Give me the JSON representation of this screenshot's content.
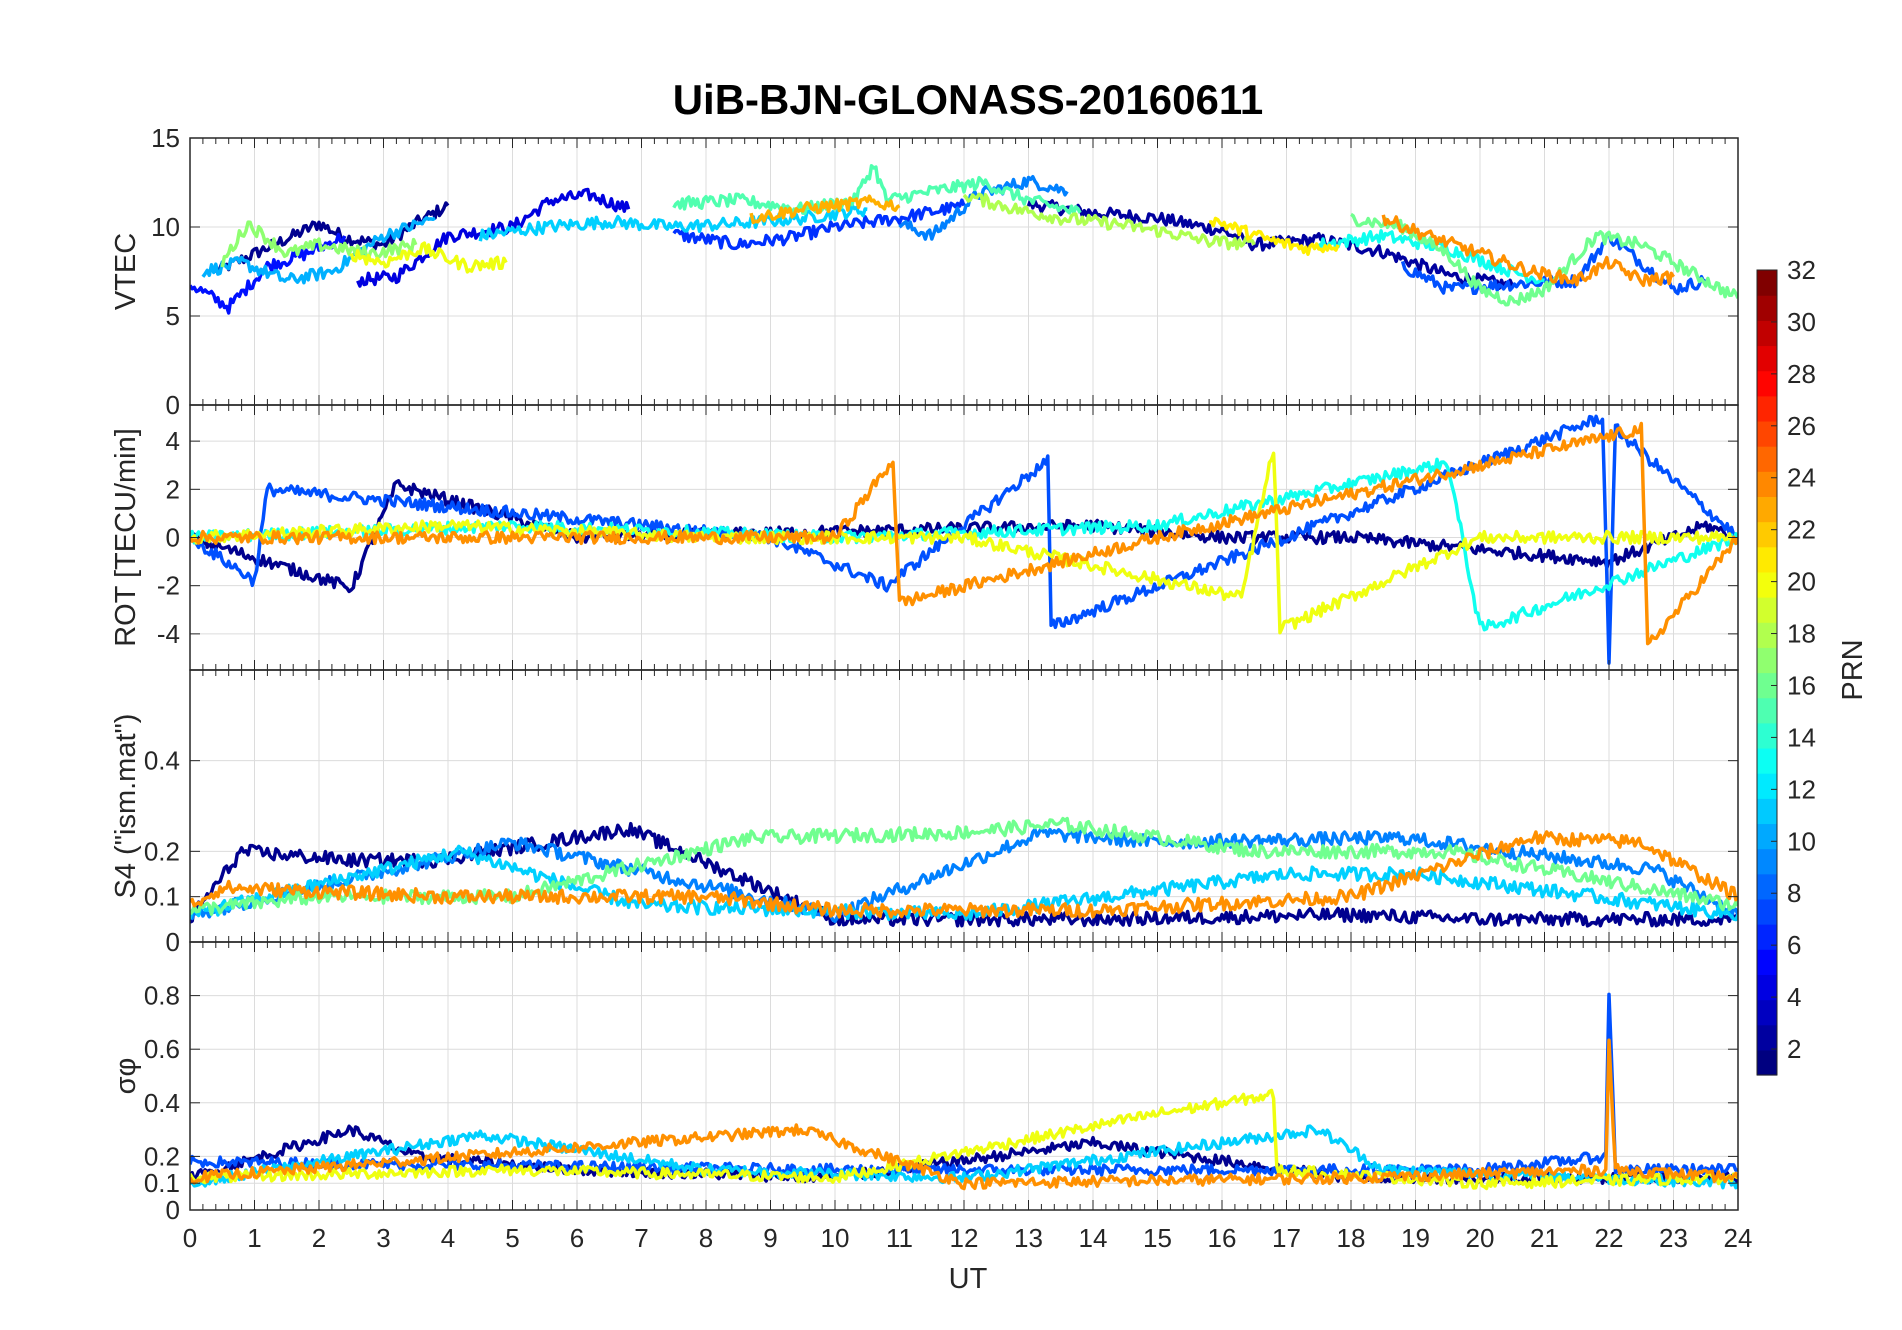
{
  "title": "UiB-BJN-GLONASS-20160611",
  "x_axis": {
    "label": "UT",
    "ticks": [
      "0",
      "1",
      "2",
      "3",
      "4",
      "5",
      "6",
      "7",
      "8",
      "9",
      "10",
      "11",
      "12",
      "13",
      "14",
      "15",
      "16",
      "17",
      "18",
      "19",
      "20",
      "21",
      "22",
      "23",
      "24"
    ],
    "range": [
      0,
      24
    ]
  },
  "colorbar": {
    "label": "PRN",
    "colormap": "jet",
    "range": [
      1,
      32
    ],
    "ticks": [
      "2",
      "4",
      "6",
      "8",
      "10",
      "12",
      "14",
      "16",
      "18",
      "20",
      "22",
      "24",
      "26",
      "28",
      "30",
      "32"
    ]
  },
  "chart_data": [
    {
      "type": "line",
      "panel": "VTEC",
      "ylabel": "VTEC",
      "ylim": [
        0,
        15
      ],
      "yticks": [
        "0",
        "5",
        "10",
        "15"
      ],
      "grid": true,
      "series": [
        {
          "prn": 2,
          "color": "#00008f",
          "x": [
            0.4,
            1.0,
            1.6,
            2.0,
            2.4,
            3.0,
            3.5,
            4.0
          ],
          "y": [
            7.5,
            8.5,
            9.5,
            10.2,
            9.4,
            9.0,
            10.2,
            11.2
          ]
        },
        {
          "prn": 3,
          "color": "#00009f",
          "x": [
            13.0,
            14.0,
            15.0,
            16.0,
            16.5,
            17.5,
            18.5,
            19.5,
            20.5
          ],
          "y": [
            11.3,
            10.8,
            10.5,
            9.8,
            9.0,
            9.3,
            8.6,
            7.3,
            6.7
          ]
        },
        {
          "prn": 5,
          "color": "#0000df",
          "x": [
            2.6,
            3.2,
            4.0,
            5.0,
            5.6,
            6.2,
            6.8
          ],
          "y": [
            7.0,
            7.2,
            9.5,
            10.0,
            11.5,
            11.8,
            11.0
          ]
        },
        {
          "prn": 6,
          "color": "#0010ff",
          "x": [
            0.0,
            0.6,
            1.2,
            1.8,
            2.4
          ],
          "y": [
            6.8,
            5.5,
            7.8,
            8.5,
            9.5
          ]
        },
        {
          "prn": 7,
          "color": "#0030ff",
          "x": [
            7.5,
            8.5,
            9.3,
            10.0,
            11.0,
            12.0
          ],
          "y": [
            9.6,
            9.0,
            9.4,
            10.0,
            10.5,
            11.2
          ]
        },
        {
          "prn": 8,
          "color": "#0050ff",
          "x": [
            18.8,
            19.5,
            20.5,
            21.5,
            22.0,
            22.5,
            23.0,
            23.5
          ],
          "y": [
            7.8,
            6.5,
            6.8,
            7.0,
            9.5,
            8.0,
            6.5,
            7.0
          ]
        },
        {
          "prn": 9,
          "color": "#0080ff",
          "x": [
            11.0,
            11.5,
            12.2,
            13.0,
            13.6
          ],
          "y": [
            10.2,
            9.5,
            11.8,
            12.6,
            12.0
          ]
        },
        {
          "prn": 11,
          "color": "#00b0ff",
          "x": [
            0.2,
            0.8,
            1.5,
            2.2,
            3.0,
            3.8
          ],
          "y": [
            7.5,
            8.0,
            7.0,
            7.5,
            9.5,
            10.5
          ]
        },
        {
          "prn": 12,
          "color": "#00d0ff",
          "x": [
            4.5,
            5.5,
            6.5,
            7.5,
            8.5,
            9.5,
            10.5
          ],
          "y": [
            9.5,
            10.0,
            10.3,
            10.0,
            10.2,
            10.5,
            11.0
          ]
        },
        {
          "prn": 13,
          "color": "#10ffef",
          "x": [
            17.5,
            18.5,
            19.5,
            20.5,
            21.0
          ],
          "y": [
            9.0,
            9.5,
            8.8,
            7.5,
            7.0
          ]
        },
        {
          "prn": 15,
          "color": "#50ffaf",
          "x": [
            7.5,
            8.5,
            9.5,
            10.3,
            10.6,
            10.8,
            11.5,
            12.3,
            13.0,
            13.8
          ],
          "y": [
            11.3,
            11.5,
            11.0,
            11.5,
            13.5,
            11.5,
            12.0,
            12.5,
            11.5,
            10.8
          ]
        },
        {
          "prn": 16,
          "color": "#70ff8f",
          "x": [
            18.0,
            18.8,
            19.5,
            20.0,
            20.5,
            21.0,
            21.8,
            22.5,
            23.0,
            24.0
          ],
          "y": [
            10.5,
            10.0,
            8.5,
            6.5,
            5.8,
            6.5,
            9.5,
            9.0,
            8.0,
            6.0
          ]
        },
        {
          "prn": 17,
          "color": "#8fff70",
          "x": [
            0.5,
            0.9,
            1.5,
            2.0,
            2.8,
            3.5
          ],
          "y": [
            8.0,
            10.2,
            8.5,
            9.0,
            8.5,
            9.0
          ]
        },
        {
          "prn": 18,
          "color": "#afff50",
          "x": [
            12.0,
            12.8,
            13.5,
            14.3,
            15.0,
            15.8,
            16.5
          ],
          "y": [
            11.8,
            11.0,
            10.5,
            10.2,
            9.8,
            9.2,
            9.0
          ]
        },
        {
          "prn": 20,
          "color": "#efff10",
          "x": [
            2.5,
            3.0,
            3.6,
            4.3,
            4.9
          ],
          "y": [
            8.5,
            8.0,
            8.8,
            7.8,
            8.0
          ]
        },
        {
          "prn": 21,
          "color": "#ffef00",
          "x": [
            15.8,
            16.3,
            16.8,
            17.3,
            17.8
          ],
          "y": [
            10.5,
            9.8,
            9.2,
            8.8,
            9.0
          ]
        },
        {
          "prn": 23,
          "color": "#ffaf00",
          "x": [
            8.7,
            9.5,
            10.5,
            11.0
          ],
          "y": [
            10.5,
            11.0,
            11.4,
            11.2
          ]
        },
        {
          "prn": 24,
          "color": "#ff9000",
          "x": [
            18.5,
            19.2,
            20.0,
            20.8,
            21.5,
            22.0,
            22.5,
            23.0
          ],
          "y": [
            10.5,
            9.5,
            8.5,
            7.5,
            7.0,
            8.0,
            7.0,
            7.2
          ]
        }
      ]
    },
    {
      "type": "line",
      "panel": "ROT",
      "ylabel": "ROT [TECU/min]",
      "ylim": [
        -5.5,
        5.5
      ],
      "yticks": [
        "-4",
        "-2",
        "0",
        "2",
        "4"
      ],
      "grid": true,
      "description_of_values": "mostly noise near 0 with excursions up to about +/-5 near 22 UT",
      "series": [
        {
          "prn": 2,
          "color": "#00008f",
          "x": [
            0,
            2.5,
            3.2,
            6,
            14,
            16,
            18,
            22,
            23.5,
            24
          ],
          "y": [
            0,
            -2.1,
            2.2,
            0,
            0.5,
            0,
            0,
            -1,
            0.5,
            0
          ]
        },
        {
          "prn": 8,
          "color": "#0050ff",
          "x": [
            0,
            1.0,
            1.2,
            9,
            10.8,
            13.3,
            13.35,
            21.9,
            22.0,
            22.1,
            24
          ],
          "y": [
            0,
            -1.8,
            2.0,
            0,
            -2.0,
            3.2,
            -3.7,
            5.0,
            -5.0,
            4.5,
            0
          ]
        },
        {
          "prn": 13,
          "color": "#10ffef",
          "x": [
            0,
            5,
            10,
            15,
            19.5,
            20.0,
            24
          ],
          "y": [
            0,
            0.5,
            0,
            0.5,
            3.1,
            -3.8,
            0
          ]
        },
        {
          "prn": 20,
          "color": "#efff10",
          "x": [
            0,
            4,
            8,
            12,
            16.3,
            16.8,
            16.9,
            20,
            24
          ],
          "y": [
            0,
            0.5,
            0,
            0,
            -2.5,
            3.7,
            -3.8,
            0,
            0
          ]
        },
        {
          "prn": 24,
          "color": "#ff9000",
          "x": [
            0,
            5,
            10,
            10.9,
            11.0,
            15,
            22.5,
            22.6,
            24
          ],
          "y": [
            0,
            0,
            0,
            3.2,
            -2.7,
            0,
            4.5,
            -4.5,
            0
          ]
        }
      ]
    },
    {
      "type": "line",
      "panel": "S4",
      "ylabel": "S4 (\"ism.mat\")",
      "ylim": [
        0,
        0.6
      ],
      "yticks": [
        "0",
        "0.1",
        "0.2",
        "0.4"
      ],
      "grid": true,
      "series": [
        {
          "prn": 2,
          "color": "#00008f",
          "x": [
            0,
            0.8,
            2.5,
            3.8,
            6.8,
            10,
            14,
            18,
            20,
            24
          ],
          "y": [
            0.05,
            0.2,
            0.18,
            0.18,
            0.25,
            0.05,
            0.05,
            0.06,
            0.05,
            0.05
          ]
        },
        {
          "prn": 10,
          "color": "#0080ff",
          "x": [
            0,
            5,
            10,
            13.2,
            15,
            18.8,
            22.7,
            24
          ],
          "y": [
            0.06,
            0.22,
            0.06,
            0.24,
            0.22,
            0.23,
            0.16,
            0.06
          ]
        },
        {
          "prn": 12,
          "color": "#00d0ff",
          "x": [
            0,
            4.2,
            6,
            7,
            12,
            17,
            19,
            24
          ],
          "y": [
            0.06,
            0.2,
            0.12,
            0.08,
            0.06,
            0.15,
            0.15,
            0.06
          ]
        },
        {
          "prn": 16,
          "color": "#70ff8f",
          "x": [
            0,
            2,
            5,
            8.7,
            11.8,
            13.5,
            16.5,
            19.5,
            24
          ],
          "y": [
            0.07,
            0.1,
            0.1,
            0.23,
            0.24,
            0.26,
            0.2,
            0.2,
            0.08
          ]
        },
        {
          "prn": 24,
          "color": "#ff9000",
          "x": [
            0,
            0.5,
            4,
            8,
            10,
            14,
            18,
            20.8,
            22.5,
            24
          ],
          "y": [
            0.08,
            0.12,
            0.1,
            0.1,
            0.07,
            0.07,
            0.1,
            0.23,
            0.22,
            0.1
          ]
        }
      ]
    },
    {
      "type": "line",
      "panel": "sigma_phi",
      "ylabel": "σφ",
      "ylim": [
        0,
        1
      ],
      "yticks": [
        "0",
        "0.1",
        "0.2",
        "0.4",
        "0.6",
        "0.8"
      ],
      "grid": true,
      "series": [
        {
          "prn": 2,
          "color": "#00008f",
          "x": [
            0,
            2.5,
            3.5,
            6,
            10,
            14,
            15.5,
            18,
            24
          ],
          "y": [
            0.12,
            0.3,
            0.2,
            0.15,
            0.12,
            0.25,
            0.2,
            0.12,
            0.12
          ]
        },
        {
          "prn": 8,
          "color": "#0050ff",
          "x": [
            0,
            10,
            20,
            21.95,
            22.0,
            22.1,
            24
          ],
          "y": [
            0.18,
            0.15,
            0.15,
            0.2,
            0.82,
            0.15,
            0.15
          ]
        },
        {
          "prn": 12,
          "color": "#00d0ff",
          "x": [
            0,
            4.5,
            8,
            12,
            17.5,
            18.5,
            24
          ],
          "y": [
            0.1,
            0.28,
            0.15,
            0.12,
            0.3,
            0.15,
            0.1
          ]
        },
        {
          "prn": 20,
          "color": "#efff10",
          "x": [
            0,
            5,
            10,
            15,
            16.8,
            16.85,
            20,
            24
          ],
          "y": [
            0.12,
            0.15,
            0.12,
            0.36,
            0.43,
            0.15,
            0.1,
            0.12
          ]
        },
        {
          "prn": 24,
          "color": "#ff9000",
          "x": [
            0,
            9.5,
            12,
            18,
            21.95,
            22.0,
            22.1,
            24
          ],
          "y": [
            0.12,
            0.3,
            0.1,
            0.12,
            0.15,
            0.62,
            0.15,
            0.12
          ]
        }
      ]
    }
  ]
}
